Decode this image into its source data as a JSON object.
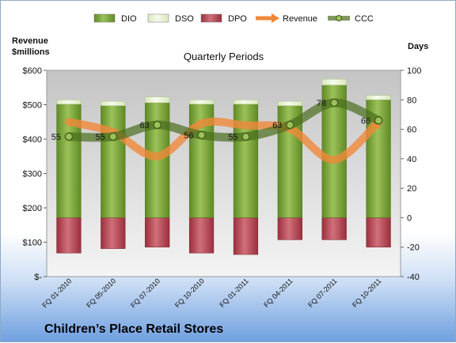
{
  "chart_data": {
    "type": "bar",
    "subtitle": "Quarterly Periods",
    "footer_title": "Children’s Place Retail Stores",
    "left_axis_title": [
      "Revenue",
      "$millions"
    ],
    "right_axis_title": "Days",
    "left_axis": {
      "min": 0,
      "max": 600,
      "ticks": [
        0,
        100,
        200,
        300,
        400,
        500,
        600
      ],
      "tick_labels": [
        "$-",
        "$100",
        "$200",
        "$300",
        "$400",
        "$500",
        "$600"
      ]
    },
    "right_axis": {
      "min": -40,
      "max": 100,
      "ticks": [
        -40,
        -20,
        0,
        20,
        40,
        60,
        80,
        100
      ],
      "tick_labels": [
        "-40",
        "-20",
        "0",
        "20",
        "40",
        "60",
        "80",
        "100"
      ]
    },
    "categories": [
      "FQ 01-2010",
      "FQ 05-2010",
      "FQ 07-2010",
      "FQ 10-2010",
      "FQ 01-2011",
      "FQ 04-2011",
      "FQ 07-2011",
      "FQ 10-2011"
    ],
    "series": [
      {
        "name": "DIO",
        "axis": "right",
        "kind": "bar",
        "color": "#6f9a2e",
        "values": [
          77,
          76,
          78,
          77,
          77,
          76,
          90,
          80
        ]
      },
      {
        "name": "DSO",
        "axis": "right",
        "kind": "bar",
        "color": "#e6f0cf",
        "values": [
          3,
          3,
          4,
          3,
          3,
          3,
          4,
          3
        ]
      },
      {
        "name": "DPO",
        "axis": "right",
        "kind": "bar",
        "color": "#b23a48",
        "values": [
          -24,
          -21,
          -20,
          -24,
          -25,
          -15,
          -15,
          -20
        ]
      },
      {
        "name": "Revenue",
        "axis": "left",
        "kind": "line",
        "color": "#f0883a",
        "values": [
          450,
          420,
          350,
          445,
          440,
          430,
          340,
          450
        ]
      },
      {
        "name": "CCC",
        "axis": "right",
        "kind": "line",
        "color": "#4a6e1e",
        "values": [
          55,
          55,
          63,
          56,
          55,
          63,
          78,
          66
        ],
        "data_labels": [
          "55",
          "55",
          "63",
          "56",
          "55",
          "63",
          "78",
          "66"
        ]
      }
    ],
    "legend_position": "top",
    "grid": false
  }
}
